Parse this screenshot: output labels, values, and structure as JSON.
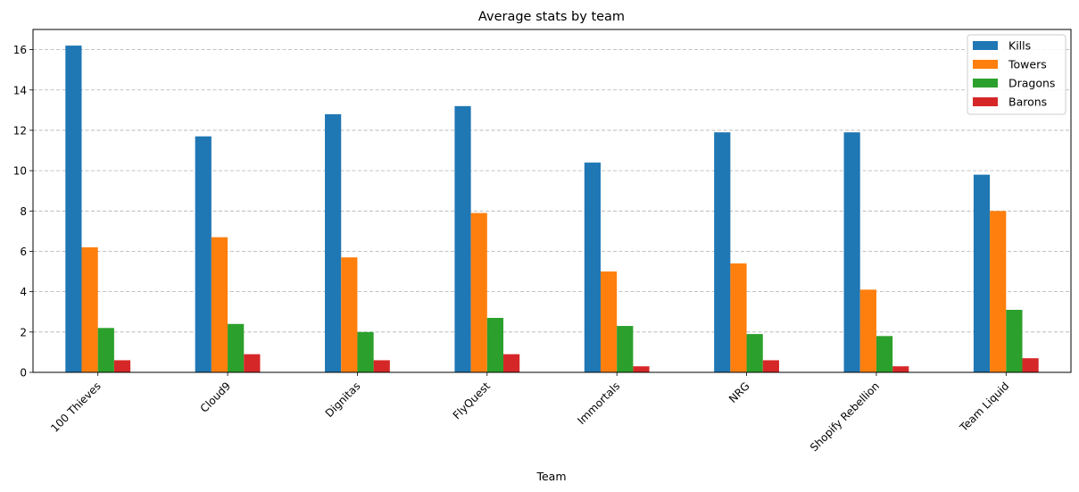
{
  "chart_data": {
    "type": "bar",
    "title": "Average stats by team",
    "xlabel": "Team",
    "ylabel": "",
    "ylim": [
      0,
      17
    ],
    "yticks": [
      0,
      2,
      4,
      6,
      8,
      10,
      12,
      14,
      16
    ],
    "grid": "y-dashed",
    "legend_position": "top-right",
    "categories": [
      "100 Thieves",
      "Cloud9",
      "Dignitas",
      "FlyQuest",
      "Immortals",
      "NRG",
      "Shopify Rebellion",
      "Team Liquid"
    ],
    "series": [
      {
        "name": "Kills",
        "color": "#1f77b4",
        "values": [
          16.2,
          11.7,
          12.8,
          13.2,
          10.4,
          11.9,
          11.9,
          9.8
        ]
      },
      {
        "name": "Towers",
        "color": "#ff7f0e",
        "values": [
          6.2,
          6.7,
          5.7,
          7.9,
          5.0,
          5.4,
          4.1,
          8.0
        ]
      },
      {
        "name": "Dragons",
        "color": "#2ca02c",
        "values": [
          2.2,
          2.4,
          2.0,
          2.7,
          2.3,
          1.9,
          1.8,
          3.1
        ]
      },
      {
        "name": "Barons",
        "color": "#d62728",
        "values": [
          0.6,
          0.9,
          0.6,
          0.9,
          0.3,
          0.6,
          0.3,
          0.7
        ]
      }
    ]
  }
}
